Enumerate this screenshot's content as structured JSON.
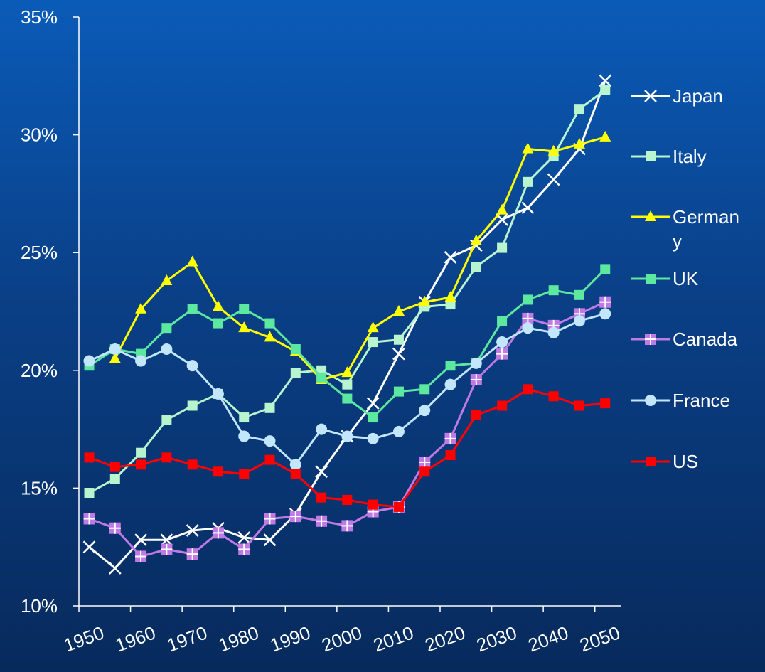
{
  "chart_data": {
    "type": "line",
    "title": "",
    "xlabel": "",
    "ylabel": "",
    "x": [
      1952,
      1957,
      1962,
      1967,
      1972,
      1977,
      1982,
      1987,
      1992,
      1997,
      2002,
      2007,
      2012,
      2017,
      2022,
      2027,
      2032,
      2037,
      2042,
      2047,
      2052
    ],
    "x_ticks": [
      1950,
      1960,
      1970,
      1980,
      1990,
      2000,
      2010,
      2020,
      2030,
      2040,
      2050
    ],
    "x_tick_labels": [
      "1950",
      "1960",
      "1970",
      "1980",
      "1990",
      "2000",
      "2010",
      "2020",
      "2030",
      "2040",
      "2050"
    ],
    "xlim": [
      1950,
      2055
    ],
    "ylim": [
      10,
      35
    ],
    "y_ticks": [
      10,
      15,
      20,
      25,
      30,
      35
    ],
    "y_tick_labels": [
      "10%",
      "15%",
      "20%",
      "25%",
      "30%",
      "35%"
    ],
    "grid": false,
    "legend_position": "right",
    "series": [
      {
        "name": "Japan",
        "color": "#ffffff",
        "marker": "x",
        "values": [
          12.5,
          11.6,
          12.8,
          12.8,
          13.2,
          13.3,
          12.9,
          12.8,
          13.9,
          15.7,
          17.2,
          18.6,
          20.7,
          22.9,
          24.8,
          25.3,
          26.4,
          26.9,
          28.1,
          29.4,
          32.3
        ]
      },
      {
        "name": "Italy",
        "color": "#b8f5cf",
        "marker": "square",
        "values": [
          14.8,
          15.4,
          16.5,
          17.9,
          18.5,
          19.0,
          18.0,
          18.4,
          19.9,
          20.0,
          19.4,
          21.2,
          21.3,
          22.7,
          22.8,
          24.4,
          25.2,
          28.0,
          29.1,
          31.1,
          31.9
        ]
      },
      {
        "name": "Germany",
        "color": "#ffff00",
        "marker": "triangle",
        "values": [
          null,
          20.5,
          22.6,
          23.8,
          24.6,
          22.7,
          21.8,
          21.4,
          20.8,
          19.6,
          19.9,
          21.8,
          22.5,
          22.9,
          23.1,
          25.5,
          26.8,
          29.4,
          29.3,
          29.6,
          29.9
        ]
      },
      {
        "name": "UK",
        "color": "#5de8a0",
        "marker": "square",
        "values": [
          20.2,
          20.9,
          20.7,
          21.8,
          22.6,
          22.0,
          22.6,
          22.0,
          20.9,
          19.7,
          18.8,
          18.0,
          19.1,
          19.2,
          20.2,
          20.3,
          22.1,
          23.0,
          23.4,
          23.2,
          24.3
        ]
      },
      {
        "name": "Canada",
        "color": "#c07ae6",
        "marker": "plus-square",
        "values": [
          13.7,
          13.3,
          12.1,
          12.4,
          12.2,
          13.1,
          12.4,
          13.7,
          13.8,
          13.6,
          13.4,
          14.0,
          14.2,
          16.1,
          17.1,
          19.6,
          20.7,
          22.2,
          21.9,
          22.4,
          22.9
        ]
      },
      {
        "name": "France",
        "color": "#c2e6fb",
        "marker": "circle",
        "values": [
          20.4,
          20.9,
          20.4,
          20.9,
          20.2,
          19.0,
          17.2,
          17.0,
          16.0,
          17.5,
          17.2,
          17.1,
          17.4,
          18.3,
          19.4,
          20.3,
          21.2,
          21.8,
          21.6,
          22.1,
          22.4
        ]
      },
      {
        "name": "US",
        "color": "#ff0000",
        "marker": "square",
        "values": [
          16.3,
          15.9,
          16.0,
          16.3,
          16.0,
          15.7,
          15.6,
          16.2,
          15.6,
          14.6,
          14.5,
          14.3,
          14.2,
          15.7,
          16.4,
          18.1,
          18.5,
          19.2,
          18.9,
          18.5,
          18.6
        ]
      }
    ],
    "legend_labels": {
      "Japan": [
        "Japan"
      ],
      "Italy": [
        "Italy"
      ],
      "Germany": [
        "German",
        "y"
      ],
      "UK": [
        "UK"
      ],
      "Canada": [
        "Canada"
      ],
      "France": [
        "France"
      ],
      "US": [
        "US"
      ]
    }
  }
}
